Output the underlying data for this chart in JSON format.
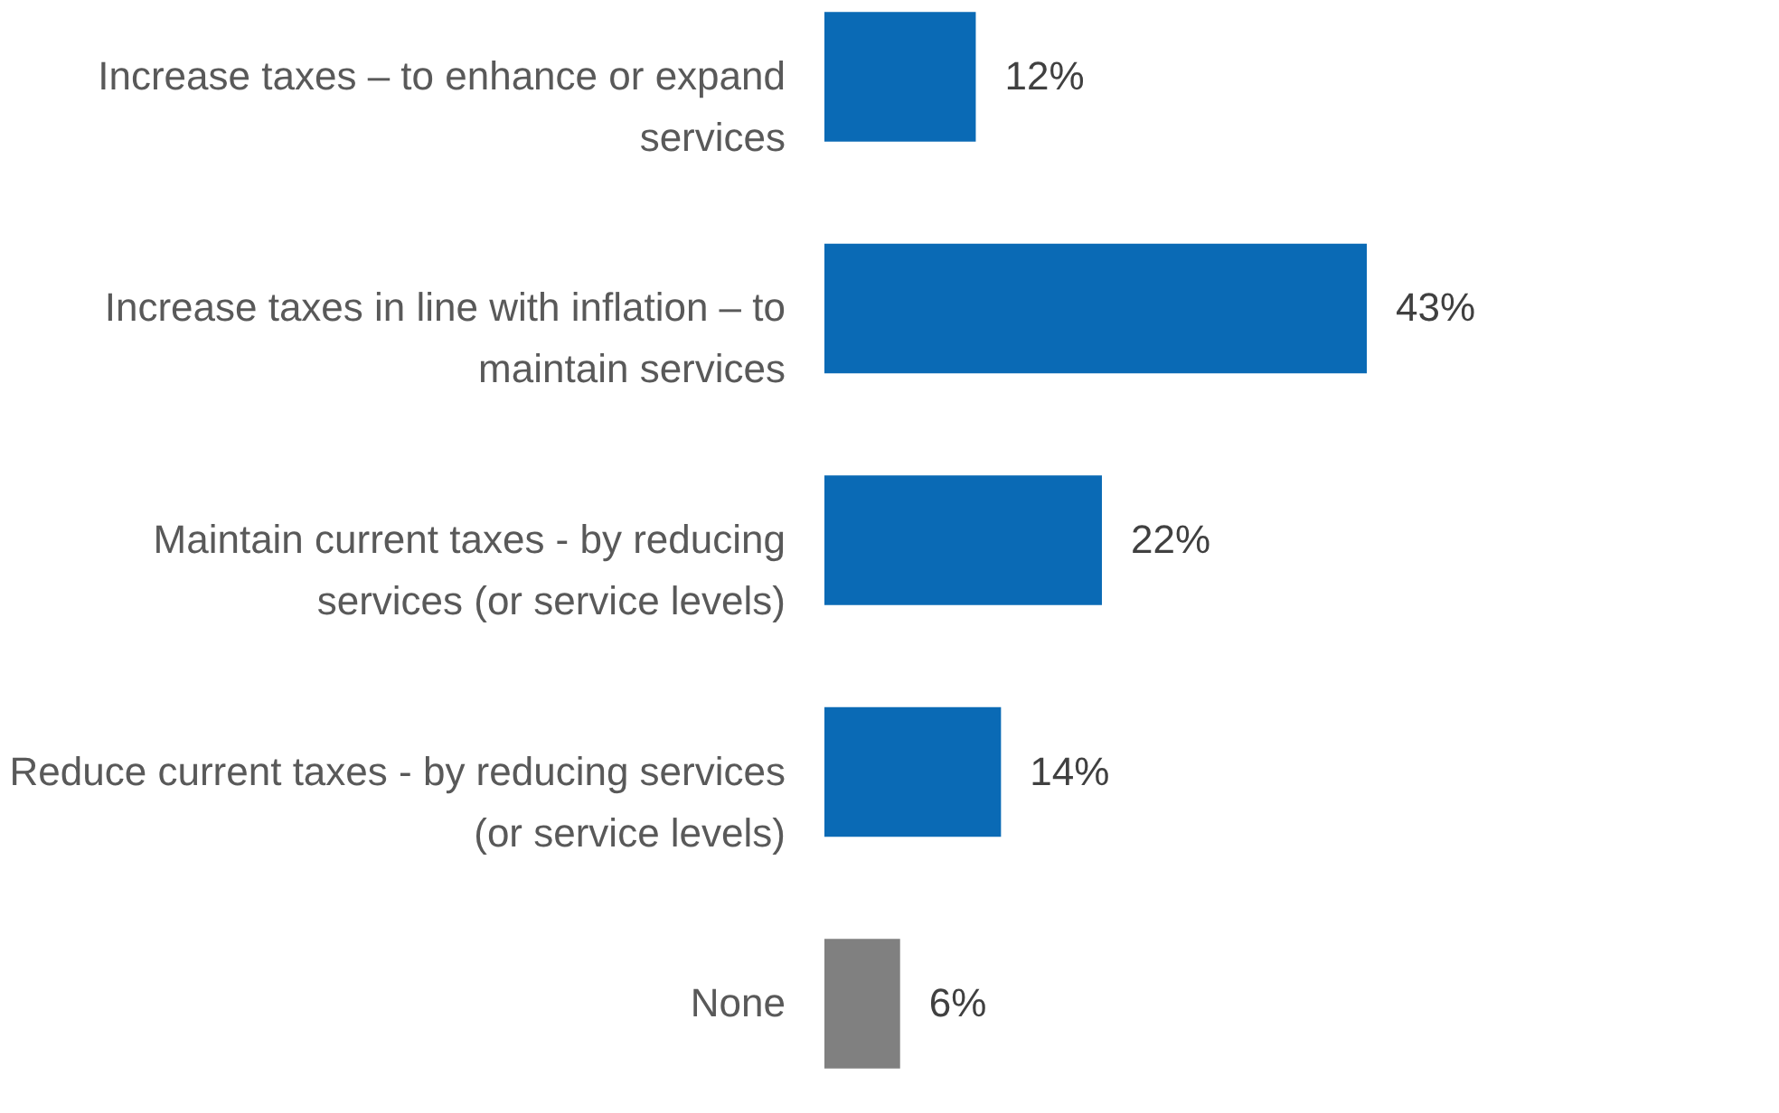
{
  "chart_data": {
    "type": "bar",
    "orientation": "horizontal",
    "categories": [
      "Increase taxes – to enhance or expand services",
      "Increase taxes in line with inflation – to maintain services",
      "Maintain current taxes - by reducing services (or service levels)",
      "Reduce current taxes - by reducing services (or service levels)",
      "None"
    ],
    "values": [
      12,
      43,
      22,
      14,
      6
    ],
    "colors": [
      "#0a6ab5",
      "#0a6ab5",
      "#0a6ab5",
      "#0a6ab5",
      "#808080"
    ],
    "value_labels": [
      "12%",
      "43%",
      "22%",
      "14%",
      "6%"
    ]
  }
}
